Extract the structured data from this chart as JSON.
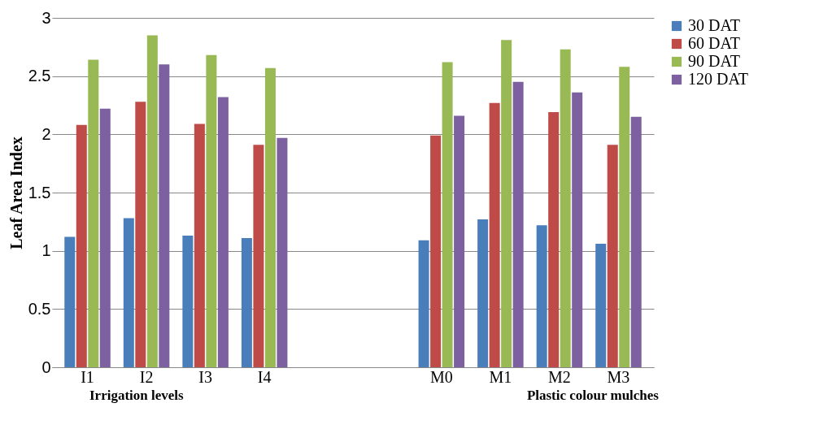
{
  "chart_data": {
    "type": "bar",
    "ylabel": "Leaf Area Index",
    "categories": [
      "I1",
      "I2",
      "I3",
      "I4",
      null,
      null,
      "M0",
      "M1",
      "M2",
      "M3"
    ],
    "series": [
      {
        "name": "30 DAT",
        "color": "#4a7ebb",
        "values": [
          1.12,
          1.28,
          1.13,
          1.11,
          null,
          null,
          1.09,
          1.27,
          1.22,
          1.06
        ]
      },
      {
        "name": "60 DAT",
        "color": "#be4b48",
        "values": [
          2.08,
          2.28,
          2.09,
          1.91,
          null,
          null,
          1.99,
          2.27,
          2.19,
          1.91
        ]
      },
      {
        "name": "90 DAT",
        "color": "#98b954",
        "values": [
          2.64,
          2.85,
          2.68,
          2.57,
          null,
          null,
          2.62,
          2.81,
          2.73,
          2.58
        ]
      },
      {
        "name": "120 DAT",
        "color": "#7d60a0",
        "values": [
          2.22,
          2.6,
          2.32,
          1.97,
          null,
          null,
          2.16,
          2.45,
          2.36,
          2.15
        ]
      }
    ],
    "ylim": [
      0,
      3
    ],
    "yticks": [
      0,
      0.5,
      1,
      1.5,
      2,
      2.5,
      3
    ],
    "grid": "y",
    "legend": "right",
    "annotations": [
      "Irrigation levels",
      "Plastic colour mulches"
    ]
  }
}
